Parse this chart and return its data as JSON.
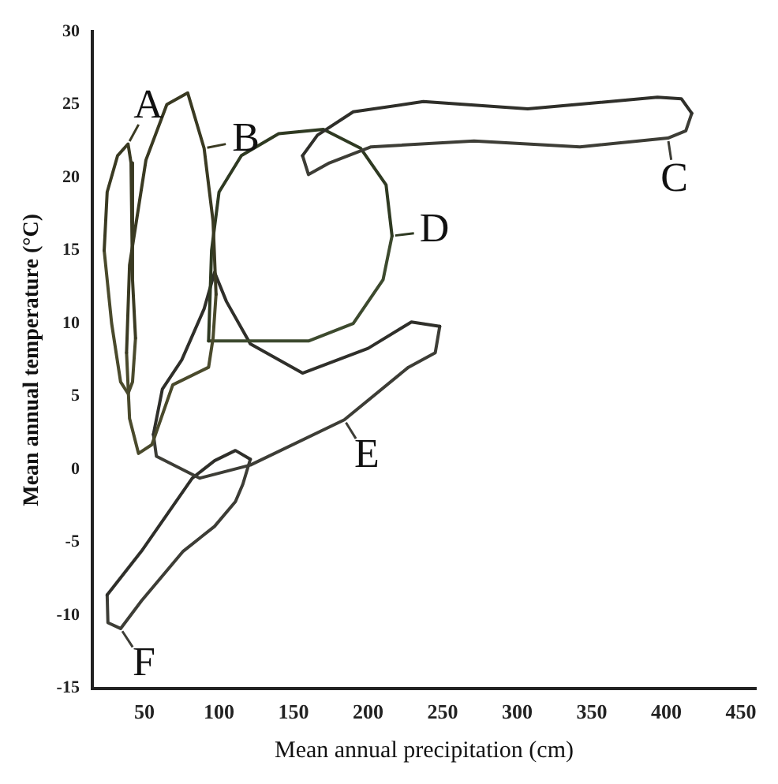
{
  "chart_data": {
    "type": "line",
    "xlabel": "Mean annual precipitation (cm)",
    "ylabel": "Mean annual temperature (°C)",
    "xlim": [
      15,
      460
    ],
    "ylim": [
      -15,
      30
    ],
    "xticks": [
      50,
      100,
      150,
      200,
      250,
      300,
      350,
      400,
      450
    ],
    "yticks": [
      -15,
      -10,
      -5,
      0,
      5,
      10,
      15,
      20,
      25,
      30
    ],
    "grid": false,
    "marker": "none",
    "line_style": "solid",
    "series": [
      {
        "color": "#3a3a22",
        "x": [
          23,
          25,
          32,
          39,
          41,
          42,
          44
        ],
        "values": [
          15,
          19,
          21.5,
          22.3,
          21,
          13,
          9
        ]
      },
      {
        "color": "#4a4a2c",
        "x": [
          23,
          28,
          34,
          39,
          42,
          44
        ],
        "values": [
          15,
          10,
          6,
          5.2,
          6,
          9
        ]
      },
      {
        "color": "#3a3a22",
        "x": [
          38,
          40,
          51,
          65,
          79,
          90,
          96,
          98
        ],
        "values": [
          8,
          14,
          21.2,
          25,
          25.8,
          22,
          17,
          12
        ]
      },
      {
        "color": "#4a4a2c",
        "x": [
          38,
          40,
          46,
          55,
          69,
          93,
          96,
          98
        ],
        "values": [
          8,
          3.5,
          1.1,
          1.7,
          5.8,
          7,
          9,
          12
        ]
      },
      {
        "color": "#2f2f2a",
        "x": [
          156,
          166,
          190,
          237,
          307,
          394,
          410,
          417
        ],
        "values": [
          21.5,
          22.9,
          24.5,
          25.2,
          24.7,
          25.5,
          25.4,
          24.4
        ]
      },
      {
        "color": "#3d3d36",
        "x": [
          156,
          160,
          174,
          202,
          271,
          342,
          401,
          413,
          417
        ],
        "values": [
          21.5,
          20.2,
          21,
          22.1,
          22.5,
          22.1,
          22.7,
          23.2,
          24.4
        ]
      },
      {
        "color": "#2f3a22",
        "x": [
          93,
          95,
          100,
          115,
          140,
          170,
          195,
          212,
          216
        ],
        "values": [
          8.8,
          15,
          19,
          21.5,
          23,
          23.3,
          22,
          19.5,
          16
        ]
      },
      {
        "color": "#3d4a2e",
        "x": [
          93,
          120,
          160,
          190,
          210,
          216
        ],
        "values": [
          8.8,
          8.8,
          8.8,
          10,
          13,
          16
        ]
      },
      {
        "color": "#2f2f2a",
        "x": [
          56,
          62,
          75,
          90,
          97,
          105,
          121,
          156,
          200,
          229,
          248
        ],
        "values": [
          2.4,
          5.5,
          7.5,
          11,
          13.5,
          11.5,
          8.6,
          6.6,
          8.3,
          10.1,
          9.8
        ]
      },
      {
        "color": "#3d3d36",
        "x": [
          56,
          58,
          87,
          121,
          184,
          227,
          245,
          248
        ],
        "values": [
          2.4,
          0.9,
          -0.6,
          0.3,
          3.4,
          7,
          8,
          9.8
        ]
      },
      {
        "color": "#2f2f2a",
        "x": [
          25,
          48,
          82,
          97,
          111,
          121
        ],
        "values": [
          -8.6,
          -5.6,
          -0.6,
          0.6,
          1.3,
          0.7
        ]
      },
      {
        "color": "#3d3d36",
        "x": [
          25,
          25.5,
          34,
          48,
          76,
          97,
          111,
          116,
          121
        ],
        "values": [
          -8.6,
          -10.5,
          -10.9,
          -9,
          -5.6,
          -3.9,
          -2.2,
          -1,
          0.7
        ]
      }
    ],
    "annotations": [
      {
        "text": "A",
        "x": 39,
        "y": 22.3
      },
      {
        "text": "B",
        "x": 90,
        "y": 22
      },
      {
        "text": "C",
        "x": 401,
        "y": 22.7
      },
      {
        "text": "D",
        "x": 216,
        "y": 16
      },
      {
        "text": "E",
        "x": 184,
        "y": 3.4
      },
      {
        "text": "F",
        "x": 34,
        "y": -10.9
      }
    ]
  }
}
